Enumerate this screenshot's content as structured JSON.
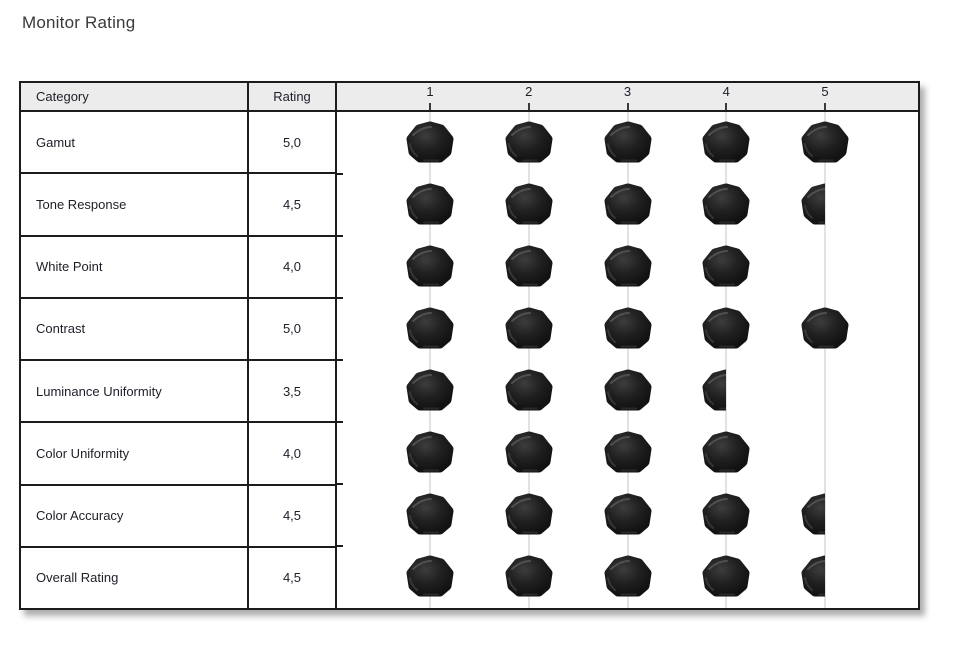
{
  "title": "Monitor Rating",
  "colors": {
    "border_dark": "#1c1c1c",
    "header_background": "#ececec",
    "gridline": "#c6c6c6",
    "text": "#1e1e28",
    "title_text": "#3a3a3a",
    "pebble_dark": "#1c1c1c",
    "pebble_highlight": "#565656"
  },
  "table": {
    "columns": {
      "category": "Category",
      "rating": "Rating"
    },
    "scale_ticks": [
      "1",
      "2",
      "3",
      "4",
      "5"
    ],
    "rows": [
      {
        "category": "Gamut",
        "rating_label": "5,0",
        "rating_value": 5.0
      },
      {
        "category": "Tone Response",
        "rating_label": "4,5",
        "rating_value": 4.5
      },
      {
        "category": "White Point",
        "rating_label": "4,0",
        "rating_value": 4.0
      },
      {
        "category": "Contrast",
        "rating_label": "5,0",
        "rating_value": 5.0
      },
      {
        "category": "Luminance Uniformity",
        "rating_label": "3,5",
        "rating_value": 3.5
      },
      {
        "category": "Color Uniformity",
        "rating_label": "4,0",
        "rating_value": 4.0
      },
      {
        "category": "Color Accuracy",
        "rating_label": "4,5",
        "rating_value": 4.5
      },
      {
        "category": "Overall Rating",
        "rating_label": "4,5",
        "rating_value": 4.5
      }
    ]
  },
  "chart_data": {
    "type": "table",
    "title": "Monitor Rating",
    "categories": [
      "Gamut",
      "Tone Response",
      "White Point",
      "Contrast",
      "Luminance Uniformity",
      "Color Uniformity",
      "Color Accuracy",
      "Overall Rating"
    ],
    "values": [
      5.0,
      4.5,
      4.0,
      5.0,
      3.5,
      4.0,
      4.5,
      4.5
    ],
    "value_labels": [
      "5,0",
      "4,5",
      "4,0",
      "5,0",
      "3,5",
      "4,0",
      "4,5",
      "4,5"
    ],
    "scale": {
      "min": 0,
      "max": 5,
      "ticks": [
        1,
        2,
        3,
        4,
        5
      ]
    },
    "marker_style": "dark pebble icon, half pebble for 0.5 fractions",
    "legend_position": "none",
    "grid": "vertical light gridlines at each integer tick"
  }
}
